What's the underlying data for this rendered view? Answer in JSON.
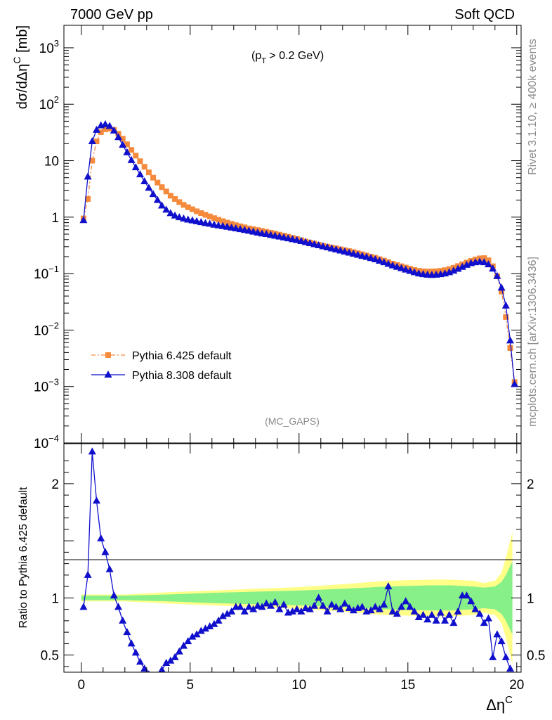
{
  "header": {
    "left": "7000 GeV pp",
    "right": "Soft QCD"
  },
  "annotations": {
    "cut": "(p",
    "cut_sub": "T",
    "cut_rest": " > 0.2 GeV)",
    "analysis": "(MC_GAPS)"
  },
  "side_text": {
    "rivet": "Rivet 3.1.10, ≥ 400k events",
    "source": "mcplots.cern.ch [arXiv:1306.3436]"
  },
  "chart_data": [
    {
      "type": "line",
      "panel": "main",
      "ylabel": "dσ/dΔη",
      "ylabel_sup": "C",
      "ylabel_unit": " [mb]",
      "yscale": "log",
      "ylim": [
        0.0001,
        2500
      ],
      "xlim": [
        -0.8,
        20.2
      ],
      "y_ticks": [
        {
          "value": 1000,
          "base": "10",
          "exp": "3"
        },
        {
          "value": 100,
          "base": "10",
          "exp": "2"
        },
        {
          "value": 10,
          "base": "10",
          "exp": ""
        },
        {
          "value": 1,
          "base": "1",
          "exp": ""
        },
        {
          "value": 0.1,
          "base": "10",
          "exp": "−1"
        },
        {
          "value": 0.01,
          "base": "10",
          "exp": "−2"
        },
        {
          "value": 0.001,
          "base": "10",
          "exp": "−3"
        },
        {
          "value": 0.0001,
          "base": "10",
          "exp": "−4"
        }
      ],
      "legend_position": "lower-left",
      "series": [
        {
          "name": "Pythia 6.425 default",
          "color": "#f58a3c",
          "marker": "square",
          "line": "dash-dot",
          "x": [
            0.1,
            0.3,
            0.5,
            0.7,
            0.9,
            1.1,
            1.3,
            1.5,
            1.7,
            1.9,
            2.1,
            2.3,
            2.5,
            2.7,
            2.9,
            3.1,
            3.3,
            3.5,
            3.7,
            3.9,
            4.1,
            4.3,
            4.5,
            4.7,
            4.9,
            5.1,
            5.3,
            5.5,
            5.7,
            5.9,
            6.1,
            6.3,
            6.5,
            6.7,
            6.9,
            7.1,
            7.3,
            7.5,
            7.7,
            7.9,
            8.1,
            8.3,
            8.5,
            8.7,
            8.9,
            9.1,
            9.3,
            9.5,
            9.7,
            9.9,
            10.1,
            10.3,
            10.5,
            10.7,
            10.9,
            11.1,
            11.3,
            11.5,
            11.7,
            11.9,
            12.1,
            12.3,
            12.5,
            12.7,
            12.9,
            13.1,
            13.3,
            13.5,
            13.7,
            13.9,
            14.1,
            14.3,
            14.5,
            14.7,
            14.9,
            15.1,
            15.3,
            15.5,
            15.7,
            15.9,
            16.1,
            16.3,
            16.5,
            16.7,
            16.9,
            17.1,
            17.3,
            17.5,
            17.7,
            17.9,
            18.1,
            18.3,
            18.5,
            18.7,
            18.9,
            19.1,
            19.3,
            19.5,
            19.7,
            19.9
          ],
          "values": [
            0.95,
            2.1,
            10,
            22,
            32,
            36,
            37,
            35,
            30,
            24.5,
            19.5,
            15.5,
            12.3,
            9.8,
            7.8,
            6.2,
            5.0,
            4.1,
            3.4,
            2.85,
            2.4,
            2.1,
            1.85,
            1.65,
            1.5,
            1.38,
            1.27,
            1.18,
            1.1,
            1.03,
            0.96,
            0.9,
            0.85,
            0.8,
            0.76,
            0.72,
            0.69,
            0.66,
            0.63,
            0.61,
            0.59,
            0.57,
            0.55,
            0.53,
            0.51,
            0.49,
            0.47,
            0.45,
            0.43,
            0.41,
            0.39,
            0.37,
            0.355,
            0.34,
            0.325,
            0.31,
            0.3,
            0.29,
            0.28,
            0.27,
            0.26,
            0.25,
            0.24,
            0.23,
            0.22,
            0.21,
            0.2,
            0.19,
            0.18,
            0.17,
            0.16,
            0.15,
            0.142,
            0.135,
            0.128,
            0.122,
            0.116,
            0.112,
            0.11,
            0.109,
            0.109,
            0.11,
            0.112,
            0.115,
            0.12,
            0.127,
            0.136,
            0.146,
            0.157,
            0.168,
            0.178,
            0.186,
            0.188,
            0.172,
            0.135,
            0.09,
            0.048,
            0.017,
            0.0048,
            0.0012
          ]
        },
        {
          "name": "Pythia 8.308 default",
          "color": "#1010cc",
          "marker": "triangle",
          "line": "solid",
          "x": [
            0.1,
            0.3,
            0.5,
            0.7,
            0.9,
            1.1,
            1.3,
            1.5,
            1.7,
            1.9,
            2.1,
            2.3,
            2.5,
            2.7,
            2.9,
            3.1,
            3.3,
            3.5,
            3.7,
            3.9,
            4.1,
            4.3,
            4.5,
            4.7,
            4.9,
            5.1,
            5.3,
            5.5,
            5.7,
            5.9,
            6.1,
            6.3,
            6.5,
            6.7,
            6.9,
            7.1,
            7.3,
            7.5,
            7.7,
            7.9,
            8.1,
            8.3,
            8.5,
            8.7,
            8.9,
            9.1,
            9.3,
            9.5,
            9.7,
            9.9,
            10.1,
            10.3,
            10.5,
            10.7,
            10.9,
            11.1,
            11.3,
            11.5,
            11.7,
            11.9,
            12.1,
            12.3,
            12.5,
            12.7,
            12.9,
            13.1,
            13.3,
            13.5,
            13.7,
            13.9,
            14.1,
            14.3,
            14.5,
            14.7,
            14.9,
            15.1,
            15.3,
            15.5,
            15.7,
            15.9,
            16.1,
            16.3,
            16.5,
            16.7,
            16.9,
            17.1,
            17.3,
            17.5,
            17.7,
            17.9,
            18.1,
            18.3,
            18.5,
            18.7,
            18.9,
            19.1,
            19.3,
            19.5,
            19.7,
            19.9
          ],
          "values": [
            0.88,
            5.2,
            22,
            35,
            42,
            44,
            41,
            34,
            26,
            19,
            14,
            10.2,
            7.6,
            5.7,
            4.3,
            3.3,
            2.55,
            2.0,
            1.6,
            1.35,
            1.17,
            1.06,
            0.99,
            0.94,
            0.9,
            0.87,
            0.84,
            0.81,
            0.78,
            0.76,
            0.73,
            0.71,
            0.69,
            0.67,
            0.65,
            0.63,
            0.61,
            0.59,
            0.57,
            0.55,
            0.53,
            0.51,
            0.5,
            0.48,
            0.465,
            0.45,
            0.435,
            0.42,
            0.405,
            0.39,
            0.375,
            0.36,
            0.345,
            0.33,
            0.316,
            0.303,
            0.29,
            0.278,
            0.266,
            0.255,
            0.244,
            0.234,
            0.224,
            0.214,
            0.205,
            0.196,
            0.187,
            0.178,
            0.168,
            0.158,
            0.148,
            0.139,
            0.131,
            0.124,
            0.117,
            0.111,
            0.105,
            0.1,
            0.097,
            0.095,
            0.094,
            0.095,
            0.097,
            0.1,
            0.105,
            0.112,
            0.121,
            0.131,
            0.142,
            0.152,
            0.158,
            0.162,
            0.158,
            0.145,
            0.122,
            0.09,
            0.056,
            0.027,
            0.0065,
            0.0011
          ]
        }
      ]
    },
    {
      "type": "line",
      "panel": "ratio",
      "xlabel": "Δη",
      "xlabel_sup": "C",
      "ylabel": "Ratio to Pythia 6.425 default",
      "ylim": [
        0.35,
        2.35
      ],
      "xlim": [
        -0.8,
        20.2
      ],
      "x_ticks": [
        0,
        5,
        10,
        15,
        20
      ],
      "y_ticks": [
        0.5,
        1,
        2
      ],
      "reference_line": 1,
      "bands": {
        "x": [
          0,
          2,
          4,
          6,
          8,
          10,
          12,
          14,
          16,
          17,
          18,
          18.5,
          19,
          19.3,
          19.5,
          19.7,
          19.8
        ],
        "inner_halfwidth": [
          0.02,
          0.02,
          0.03,
          0.045,
          0.055,
          0.065,
          0.08,
          0.1,
          0.11,
          0.11,
          0.1,
          0.09,
          0.1,
          0.14,
          0.2,
          0.28,
          0.32
        ],
        "outer_halfwidth": [
          0.03,
          0.03,
          0.05,
          0.065,
          0.08,
          0.095,
          0.12,
          0.15,
          0.16,
          0.16,
          0.15,
          0.13,
          0.15,
          0.22,
          0.35,
          0.5,
          0.58
        ],
        "inner_color": "#88f088",
        "outer_color": "#ffff88"
      },
      "series": [
        {
          "name": "Pythia 8.308 default",
          "color": "#1010cc",
          "x": [
            0.1,
            0.3,
            0.5,
            0.7,
            0.9,
            1.1,
            1.3,
            1.5,
            1.7,
            1.9,
            2.1,
            2.3,
            2.5,
            2.7,
            2.9,
            3.1,
            3.3,
            3.5,
            3.7,
            3.9,
            4.1,
            4.3,
            4.5,
            4.7,
            4.9,
            5.1,
            5.3,
            5.5,
            5.7,
            5.9,
            6.1,
            6.3,
            6.5,
            6.7,
            6.9,
            7.1,
            7.3,
            7.5,
            7.7,
            7.9,
            8.1,
            8.3,
            8.5,
            8.7,
            8.9,
            9.1,
            9.3,
            9.5,
            9.7,
            9.9,
            10.1,
            10.3,
            10.5,
            10.7,
            10.9,
            11.1,
            11.3,
            11.5,
            11.7,
            11.9,
            12.1,
            12.3,
            12.5,
            12.7,
            12.9,
            13.1,
            13.3,
            13.5,
            13.7,
            13.9,
            14.1,
            14.3,
            14.5,
            14.7,
            14.9,
            15.1,
            15.3,
            15.5,
            15.7,
            15.9,
            16.1,
            16.3,
            16.5,
            16.7,
            16.9,
            17.1,
            17.3,
            17.5,
            17.7,
            17.9,
            18.1,
            18.3,
            18.5,
            18.7,
            18.9,
            19.1,
            19.3,
            19.5,
            19.7
          ],
          "values": [
            0.92,
            1.2,
            2.28,
            1.85,
            1.52,
            1.4,
            1.25,
            1.02,
            0.92,
            0.8,
            0.7,
            0.6,
            0.52,
            0.44,
            0.38,
            0.33,
            0.3,
            0.32,
            0.37,
            0.43,
            0.45,
            0.48,
            0.53,
            0.58,
            0.62,
            0.66,
            0.68,
            0.71,
            0.73,
            0.75,
            0.77,
            0.8,
            0.84,
            0.86,
            0.88,
            0.92,
            0.92,
            0.88,
            0.92,
            0.9,
            0.93,
            0.92,
            0.95,
            0.93,
            0.96,
            0.9,
            0.94,
            0.87,
            0.88,
            0.9,
            0.88,
            0.91,
            0.9,
            0.93,
            1.0,
            0.93,
            0.88,
            0.94,
            0.92,
            0.9,
            0.95,
            0.91,
            0.89,
            0.91,
            0.92,
            0.88,
            0.89,
            0.92,
            0.9,
            0.94,
            1.1,
            0.88,
            0.86,
            0.92,
            0.97,
            0.92,
            0.88,
            0.83,
            0.85,
            0.81,
            0.85,
            0.8,
            0.87,
            0.8,
            0.85,
            0.78,
            0.88,
            1.02,
            1.02,
            0.97,
            0.9,
            0.86,
            0.78,
            0.82,
            0.48,
            0.68,
            0.62,
            0.48,
            0.38
          ]
        }
      ]
    }
  ]
}
